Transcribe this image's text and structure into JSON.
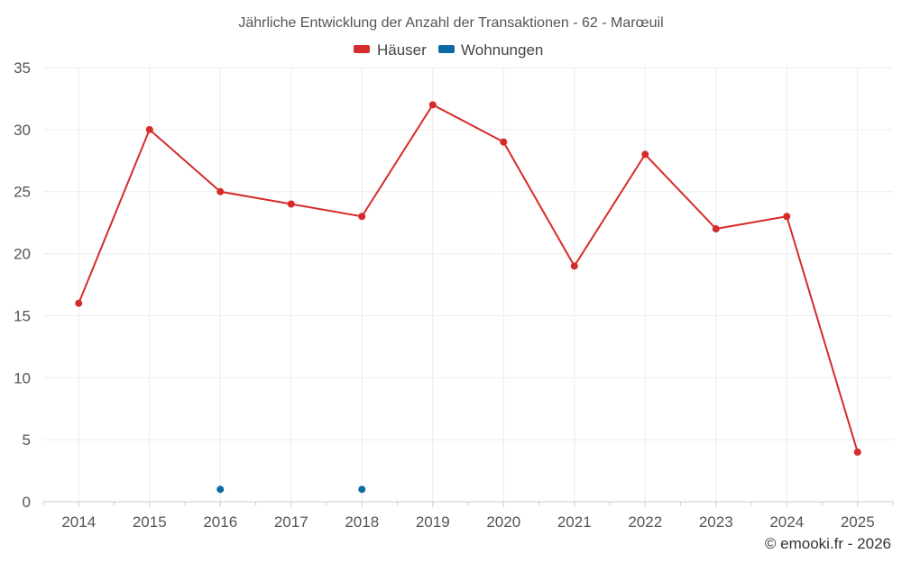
{
  "chart_data": {
    "type": "line",
    "title": "Jährliche Entwicklung der Anzahl der Transaktionen - 62 - Marœuil",
    "categories": [
      "2014",
      "2015",
      "2016",
      "2017",
      "2018",
      "2019",
      "2020",
      "2021",
      "2022",
      "2023",
      "2024",
      "2025"
    ],
    "ylim": [
      0,
      35
    ],
    "yticks": [
      0,
      5,
      10,
      15,
      20,
      25,
      30,
      35
    ],
    "grid": true,
    "legend_position": "top-center",
    "series": [
      {
        "name": "Häuser",
        "color": "#d62b2b",
        "values": [
          16,
          30,
          25,
          24,
          23,
          32,
          29,
          19,
          28,
          22,
          23,
          4
        ]
      },
      {
        "name": "Wohnungen",
        "color": "#0e6aa3",
        "values": [
          null,
          null,
          1,
          null,
          1,
          null,
          null,
          null,
          null,
          null,
          null,
          null
        ]
      }
    ],
    "credit": "© emooki.fr - 2026"
  }
}
